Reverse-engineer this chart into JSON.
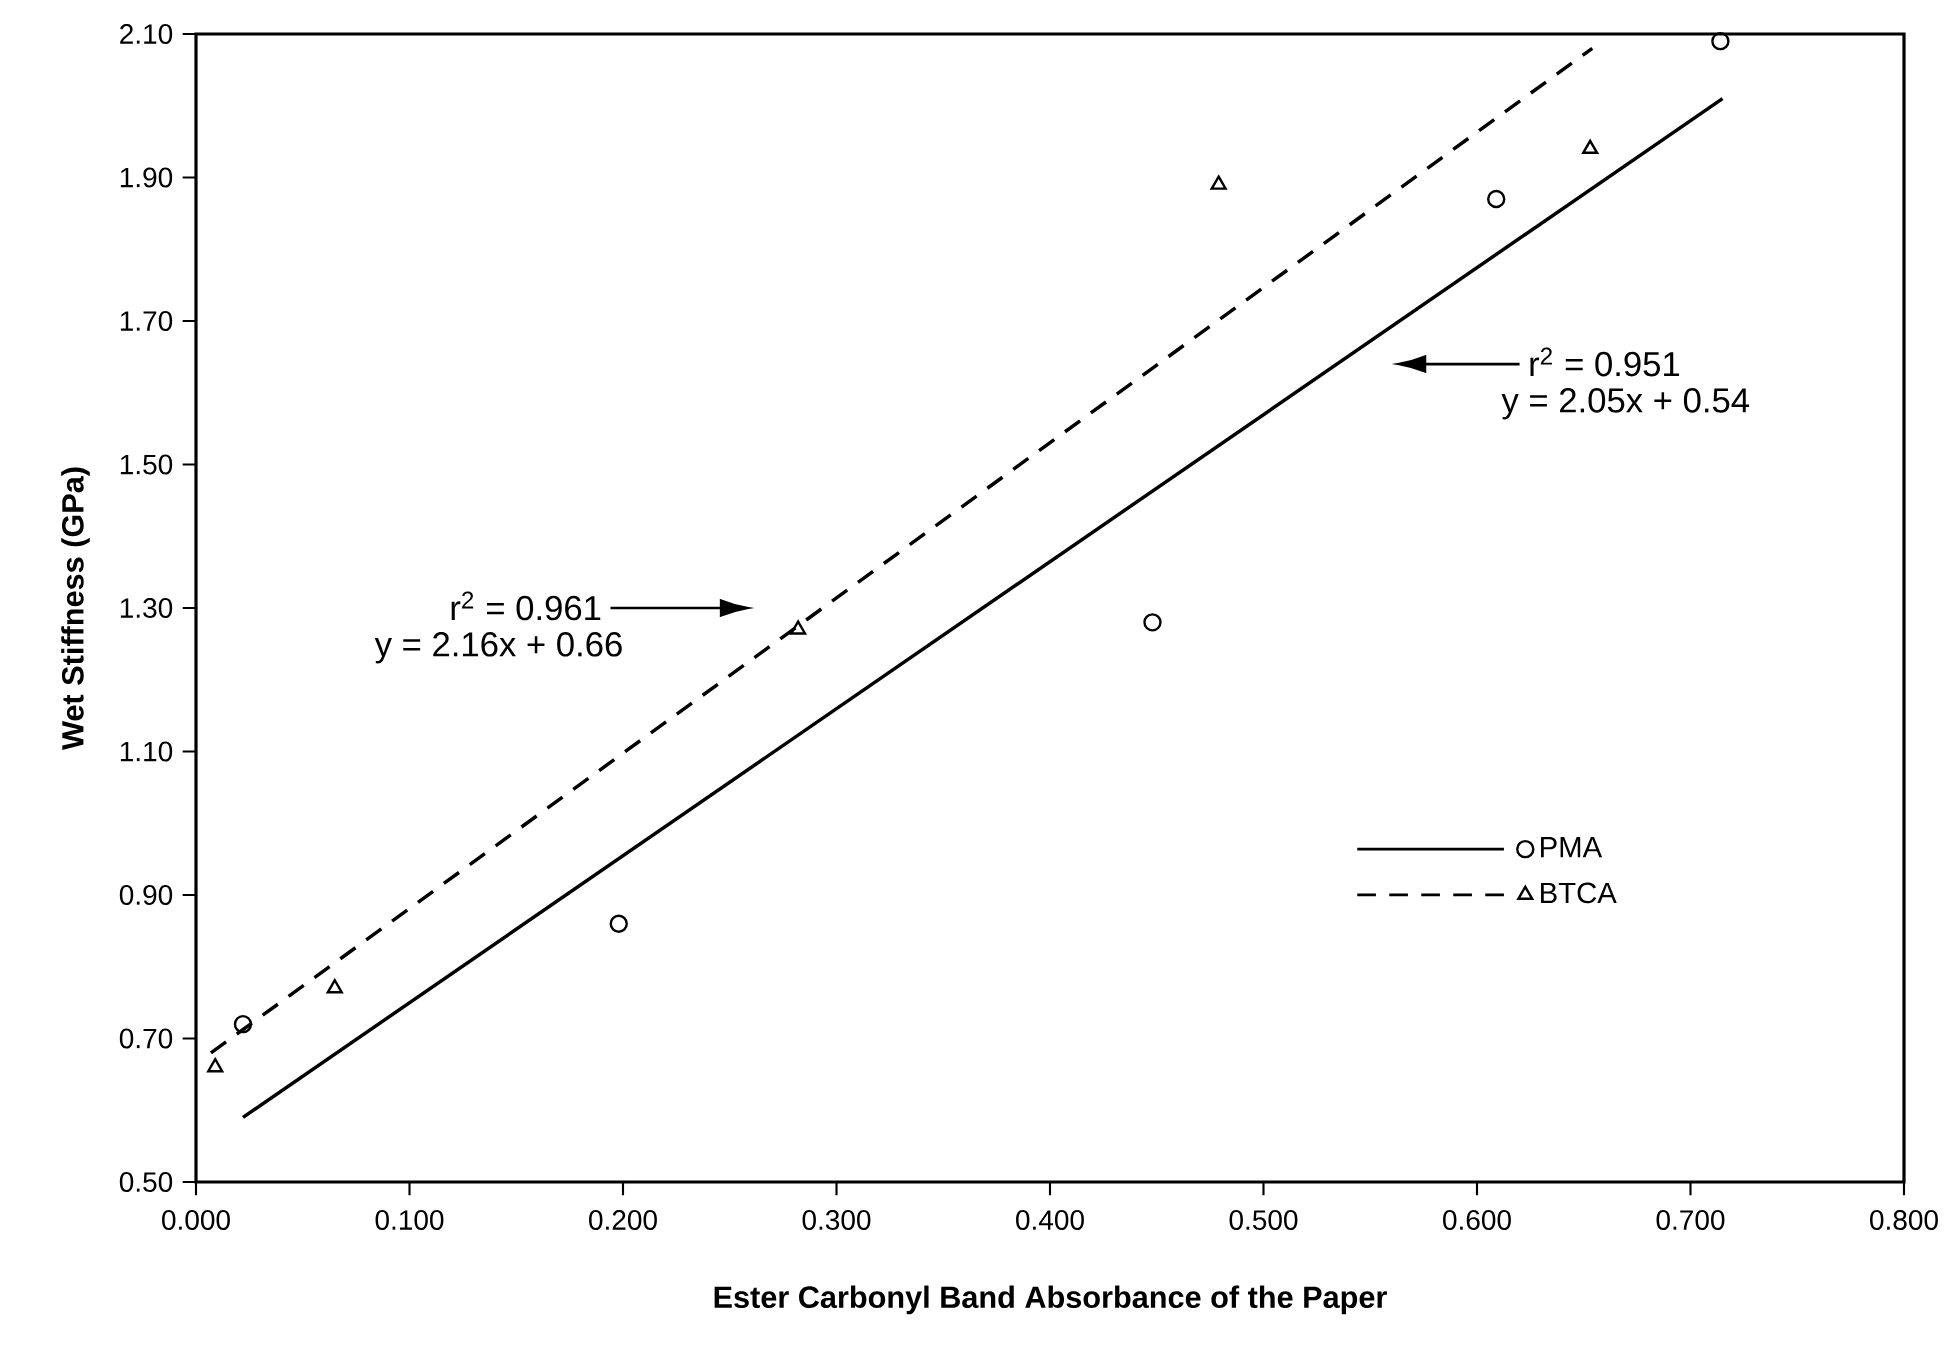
{
  "chart_data": {
    "type": "scatter",
    "xlabel": "Ester Carbonyl Band Absorbance of the Paper",
    "ylabel": "Wet Stiffness (GPa)",
    "series": [
      {
        "name": "PMA",
        "type": "scatter",
        "marker": "circle",
        "color": "#000000",
        "x": [
          0.022,
          0.198,
          0.448,
          0.609,
          0.714
        ],
        "values": [
          0.72,
          0.86,
          1.28,
          1.87,
          2.09
        ]
      },
      {
        "name": "BTCA",
        "type": "scatter",
        "marker": "triangle",
        "color": "#000000",
        "x": [
          0.009,
          0.065,
          0.282,
          0.479,
          0.653
        ],
        "values": [
          0.66,
          0.77,
          1.27,
          1.89,
          1.94
        ]
      },
      {
        "type": "line",
        "line_style": "solid",
        "color": "#000000",
        "x": [
          0.022,
          0.715
        ],
        "values": [
          0.59,
          2.01
        ]
      },
      {
        "type": "line",
        "line_style": "dashed",
        "color": "#000000",
        "x": [
          0.007,
          0.654
        ],
        "values": [
          0.68,
          2.08
        ]
      }
    ],
    "annotations": [
      "r$^{2}$ = 0.961",
      "y = 2.16x + 0.66",
      "r$^{2}$ = 0.951",
      "y = 2.05x + 0.54"
    ],
    "xlim": [
      0,
      0.8
    ],
    "ylim": [
      0.5,
      2.1
    ],
    "xticks": [
      {
        "value": 0,
        "label": "0.000"
      },
      {
        "value": 0.1,
        "label": "0.100"
      },
      {
        "value": 0.2,
        "label": "0.200"
      },
      {
        "value": 0.3,
        "label": "0.300"
      },
      {
        "value": 0.4,
        "label": "0.400"
      },
      {
        "value": 0.5,
        "label": "0.500"
      },
      {
        "value": 0.6,
        "label": "0.600"
      },
      {
        "value": 0.7,
        "label": "0.700"
      },
      {
        "value": 0.8,
        "label": "0.800"
      }
    ],
    "yticks": [
      {
        "value": 0.5,
        "label": "0.50"
      },
      {
        "value": 0.7,
        "label": "0.70"
      },
      {
        "value": 0.9,
        "label": "0.90"
      },
      {
        "value": 1.1,
        "label": "1.10"
      },
      {
        "value": 1.3,
        "label": "1.30"
      },
      {
        "value": 1.5,
        "label": "1.50"
      },
      {
        "value": 1.7,
        "label": "1.70"
      },
      {
        "value": 1.9,
        "label": "1.90"
      },
      {
        "value": 2.1,
        "label": "2.10"
      }
    ],
    "grid": false,
    "legend": "right"
  }
}
